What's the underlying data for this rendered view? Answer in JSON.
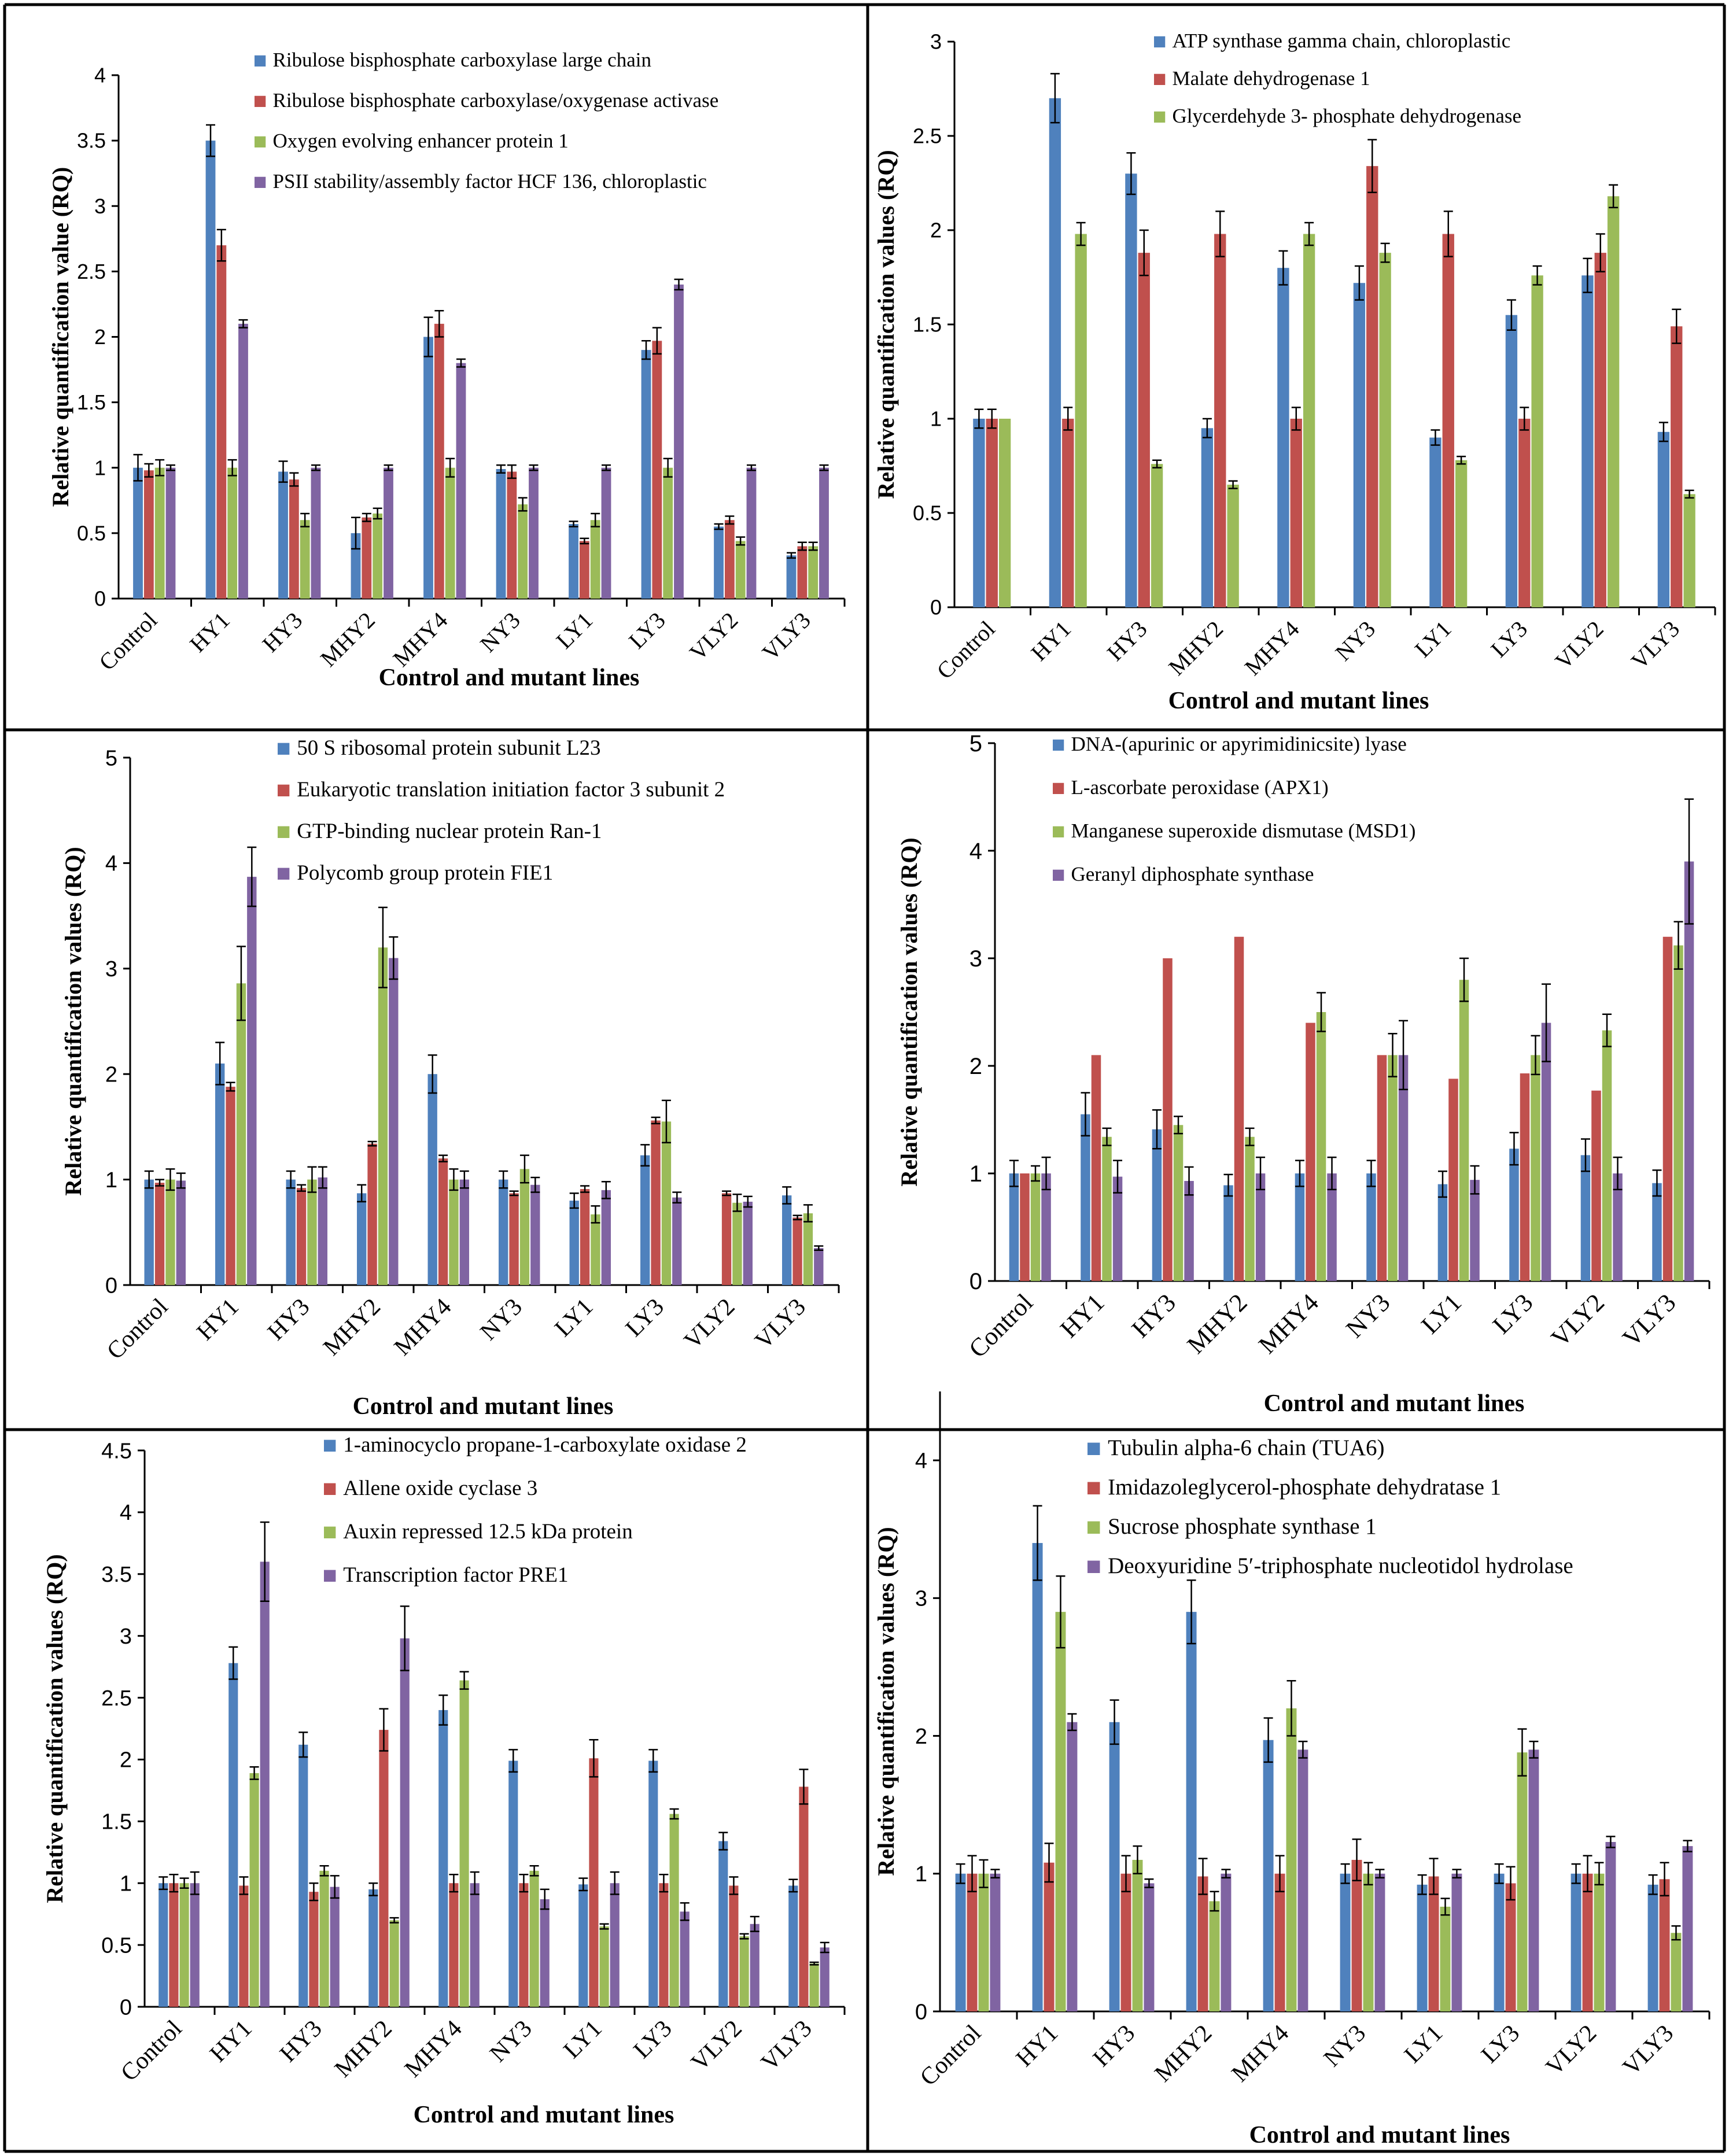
{
  "colors": {
    "series": [
      "#4F81BD",
      "#C0504D",
      "#9BBB59",
      "#8064A2"
    ],
    "axis": "#000000",
    "frame": "#000000"
  },
  "chart_data": [
    {
      "type": "bar",
      "title": "",
      "xlabel": "Control and mutant lines",
      "ylabel": "Relative quantification value (RQ)",
      "ylim": [
        0,
        4
      ],
      "yticks": [
        "0",
        "0.5",
        "1",
        "1.5",
        "2",
        "2.5",
        "3",
        "3.5",
        "4"
      ],
      "categories": [
        "Control",
        "HY1",
        "HY3",
        "MHY2",
        "MHY4",
        "NY3",
        "LY1",
        "LY3",
        "VLY2",
        "VLY3"
      ],
      "series": [
        {
          "name": "Ribulose bisphosphate carboxylase large chain",
          "values": [
            1.0,
            3.5,
            0.97,
            0.5,
            2.0,
            0.99,
            0.57,
            1.9,
            0.55,
            0.33
          ],
          "errors": [
            0.1,
            0.12,
            0.08,
            0.12,
            0.15,
            0.03,
            0.02,
            0.07,
            0.02,
            0.02
          ]
        },
        {
          "name": "Ribulose bisphosphate carboxylase/oxygenase activase",
          "values": [
            0.98,
            2.7,
            0.91,
            0.62,
            2.1,
            0.97,
            0.44,
            1.97,
            0.6,
            0.4
          ],
          "errors": [
            0.05,
            0.12,
            0.05,
            0.03,
            0.1,
            0.05,
            0.02,
            0.1,
            0.03,
            0.03
          ]
        },
        {
          "name": "Oxygen evolving enhancer protein 1",
          "values": [
            1.0,
            1.0,
            0.6,
            0.65,
            1.0,
            0.72,
            0.6,
            1.0,
            0.44,
            0.4
          ],
          "errors": [
            0.06,
            0.06,
            0.05,
            0.04,
            0.07,
            0.05,
            0.05,
            0.07,
            0.03,
            0.03
          ]
        },
        {
          "name": "PSII stability/assembly factor HCF 136, chloroplastic",
          "values": [
            1.0,
            2.1,
            1.0,
            1.0,
            1.8,
            1.0,
            1.0,
            2.4,
            1.0,
            1.0
          ],
          "errors": [
            0.02,
            0.03,
            0.02,
            0.02,
            0.03,
            0.02,
            0.02,
            0.04,
            0.02,
            0.02
          ]
        }
      ]
    },
    {
      "type": "bar",
      "title": "",
      "xlabel": "Control and mutant lines",
      "ylabel": "Relative quantification values (RQ)",
      "ylim": [
        0,
        3
      ],
      "yticks": [
        "0",
        "0.5",
        "1",
        "1.5",
        "2",
        "2.5",
        "3"
      ],
      "categories": [
        "Control",
        "HY1",
        "HY3",
        "MHY2",
        "MHY4",
        "NY3",
        "LY1",
        "LY3",
        "VLY2",
        "VLY3"
      ],
      "series": [
        {
          "name": "ATP synthase gamma chain, chloroplastic",
          "values": [
            1.0,
            2.7,
            2.3,
            0.95,
            1.8,
            1.72,
            0.9,
            1.55,
            1.76,
            0.93
          ],
          "errors": [
            0.05,
            0.13,
            0.11,
            0.05,
            0.09,
            0.09,
            0.04,
            0.08,
            0.09,
            0.05
          ]
        },
        {
          "name": "Malate dehydrogenase 1",
          "values": [
            1.0,
            1.0,
            1.88,
            1.98,
            1.0,
            2.34,
            1.98,
            1.0,
            1.88,
            1.49
          ],
          "errors": [
            0.05,
            0.06,
            0.12,
            0.12,
            0.06,
            0.14,
            0.12,
            0.06,
            0.1,
            0.09
          ]
        },
        {
          "name": "Glycerdehyde 3- phosphate dehydrogenase",
          "values": [
            1.0,
            1.98,
            0.76,
            0.65,
            1.98,
            1.88,
            0.78,
            1.76,
            2.18,
            0.6
          ],
          "errors": [
            0.0,
            0.06,
            0.02,
            0.02,
            0.06,
            0.05,
            0.02,
            0.05,
            0.06,
            0.02
          ]
        }
      ]
    },
    {
      "type": "bar",
      "title": "",
      "xlabel": "Control and mutant lines",
      "ylabel": "Relative quantification values (RQ)",
      "ylim": [
        0,
        5
      ],
      "yticks": [
        "0",
        "1",
        "2",
        "3",
        "4",
        "5"
      ],
      "categories": [
        "Control",
        "HY1",
        "HY3",
        "MHY2",
        "MHY4",
        "NY3",
        "LY1",
        "LY3",
        "VLY2",
        "VLY3"
      ],
      "series": [
        {
          "name": "50 S ribosomal protein subunit L23",
          "values": [
            1.0,
            2.1,
            1.0,
            0.87,
            2.0,
            1.0,
            0.8,
            1.23,
            0,
            0.85
          ],
          "errors": [
            0.08,
            0.2,
            0.08,
            0.08,
            0.18,
            0.08,
            0.07,
            0.1,
            0,
            0.08
          ]
        },
        {
          "name": "Eukaryotic translation initiation factor 3 subunit 2",
          "values": [
            0.97,
            1.88,
            0.92,
            1.34,
            1.2,
            0.87,
            0.91,
            1.56,
            0.87,
            0.64
          ],
          "errors": [
            0.03,
            0.04,
            0.03,
            0.02,
            0.03,
            0.02,
            0.03,
            0.03,
            0.02,
            0.02
          ]
        },
        {
          "name": "GTP-binding nuclear protein Ran-1",
          "values": [
            1.0,
            2.86,
            1.0,
            3.2,
            1.0,
            1.1,
            0.67,
            1.55,
            0.78,
            0.68
          ],
          "errors": [
            0.1,
            0.35,
            0.12,
            0.38,
            0.1,
            0.13,
            0.08,
            0.2,
            0.08,
            0.08
          ]
        },
        {
          "name": "Polycomb group protein FIE1",
          "values": [
            0.99,
            3.87,
            1.02,
            3.1,
            1.0,
            0.95,
            0.9,
            0.83,
            0.79,
            0.35
          ],
          "errors": [
            0.07,
            0.28,
            0.1,
            0.2,
            0.08,
            0.07,
            0.08,
            0.05,
            0.05,
            0.02
          ]
        }
      ]
    },
    {
      "type": "bar",
      "title": "",
      "xlabel": "Control and mutant lines",
      "ylabel": "Relative quantification values (RQ)",
      "ylim": [
        0,
        5
      ],
      "yticks": [
        "0",
        "1",
        "2",
        "3",
        "4",
        "5"
      ],
      "categories": [
        "Control",
        "HY1",
        "HY3",
        "MHY2",
        "MHY4",
        "NY3",
        "LY1",
        "LY3",
        "VLY2",
        "VLY3"
      ],
      "series": [
        {
          "name": "DNA-(apurinic or apyrimidinicsite) lyase",
          "values": [
            1.0,
            1.55,
            1.41,
            0.89,
            1.0,
            1.0,
            0.9,
            1.23,
            1.17,
            0.91
          ],
          "errors": [
            0.12,
            0.2,
            0.18,
            0.1,
            0.12,
            0.12,
            0.12,
            0.15,
            0.15,
            0.12
          ]
        },
        {
          "name": "L-ascorbate peroxidase (APX1)",
          "values": [
            1.0,
            2.1,
            3.0,
            3.2,
            2.4,
            2.1,
            1.88,
            1.93,
            1.77,
            3.2
          ]
        },
        {
          "name": "Manganese superoxide dismutase (MSD1)",
          "values": [
            1.0,
            1.34,
            1.45,
            1.34,
            2.5,
            2.1,
            2.8,
            2.1,
            2.33,
            3.12
          ],
          "errors": [
            0.07,
            0.08,
            0.08,
            0.08,
            0.18,
            0.2,
            0.2,
            0.18,
            0.15,
            0.22
          ]
        },
        {
          "name": "Geranyl diphosphate synthase",
          "values": [
            1.0,
            0.97,
            0.93,
            1.0,
            1.0,
            2.1,
            0.94,
            2.4,
            1.0,
            3.9
          ],
          "errors": [
            0.15,
            0.15,
            0.13,
            0.15,
            0.15,
            0.32,
            0.13,
            0.36,
            0.15,
            0.58
          ]
        }
      ]
    },
    {
      "type": "bar",
      "title": "",
      "xlabel": "Control and mutant lines",
      "ylabel": "Relative quantification values (RQ)",
      "ylim": [
        0,
        4.5
      ],
      "yticks": [
        "0",
        "0.5",
        "1",
        "1.5",
        "2",
        "2.5",
        "3",
        "3.5",
        "4",
        "4.5"
      ],
      "categories": [
        "Control",
        "HY1",
        "HY3",
        "MHY2",
        "MHY4",
        "NY3",
        "LY1",
        "LY3",
        "VLY2",
        "VLY3"
      ],
      "series": [
        {
          "name": "1-aminocyclo propane-1-carboxylate oxidase 2",
          "values": [
            1.0,
            2.78,
            2.12,
            0.95,
            2.4,
            1.99,
            0.99,
            1.99,
            1.34,
            0.98
          ],
          "errors": [
            0.05,
            0.13,
            0.1,
            0.05,
            0.12,
            0.09,
            0.05,
            0.09,
            0.07,
            0.05
          ]
        },
        {
          "name": "Allene oxide cyclase 3",
          "values": [
            1.0,
            0.98,
            0.93,
            2.24,
            1.0,
            1.0,
            2.01,
            1.0,
            0.98,
            1.78
          ],
          "errors": [
            0.07,
            0.07,
            0.07,
            0.17,
            0.07,
            0.07,
            0.15,
            0.07,
            0.07,
            0.14
          ]
        },
        {
          "name": "Auxin repressed 12.5 kDa protein",
          "values": [
            1.0,
            1.89,
            1.1,
            0.7,
            2.64,
            1.1,
            0.65,
            1.56,
            0.57,
            0.35
          ],
          "errors": [
            0.04,
            0.05,
            0.04,
            0.02,
            0.07,
            0.04,
            0.02,
            0.04,
            0.02,
            0.01
          ]
        },
        {
          "name": "Transcription factor PRE1",
          "values": [
            1.0,
            3.6,
            0.97,
            2.98,
            1.0,
            0.87,
            1.0,
            0.77,
            0.67,
            0.48
          ],
          "errors": [
            0.09,
            0.32,
            0.09,
            0.26,
            0.09,
            0.08,
            0.09,
            0.07,
            0.06,
            0.04
          ]
        }
      ]
    },
    {
      "type": "bar",
      "title": "",
      "xlabel": "Control and mutant lines",
      "ylabel": "Relative quantification values (RQ)",
      "ylim": [
        0,
        4.5
      ],
      "yticks": [
        "0",
        "1",
        "2",
        "3",
        "4"
      ],
      "categories": [
        "Control",
        "HY1",
        "HY3",
        "MHY2",
        "MHY4",
        "NY3",
        "LY1",
        "LY3",
        "VLY2",
        "VLY3"
      ],
      "series": [
        {
          "name": "Tubulin alpha-6 chain (TUA6)",
          "values": [
            1.0,
            3.4,
            2.1,
            2.9,
            1.97,
            1.0,
            0.92,
            1.0,
            1.0,
            0.92
          ],
          "errors": [
            0.07,
            0.27,
            0.16,
            0.23,
            0.16,
            0.07,
            0.07,
            0.07,
            0.07,
            0.07
          ]
        },
        {
          "name": "Imidazoleglycerol-phosphate dehydratase 1",
          "values": [
            1.0,
            1.08,
            1.0,
            0.98,
            1.0,
            1.1,
            0.98,
            0.93,
            1.0,
            0.96
          ],
          "errors": [
            0.13,
            0.14,
            0.13,
            0.13,
            0.13,
            0.15,
            0.13,
            0.12,
            0.13,
            0.12
          ]
        },
        {
          "name": "Sucrose phosphate synthase 1",
          "values": [
            1.0,
            2.9,
            1.1,
            0.8,
            2.2,
            1.0,
            0.76,
            1.88,
            1.0,
            0.57
          ],
          "errors": [
            0.1,
            0.26,
            0.1,
            0.07,
            0.2,
            0.08,
            0.06,
            0.17,
            0.08,
            0.05
          ]
        },
        {
          "name": "Deoxyuridine 5′-triphosphate nucleotidol hydrolase",
          "values": [
            1.0,
            2.1,
            0.93,
            1.0,
            1.9,
            1.0,
            1.0,
            1.9,
            1.23,
            1.2
          ],
          "errors": [
            0.03,
            0.06,
            0.03,
            0.03,
            0.06,
            0.03,
            0.03,
            0.06,
            0.04,
            0.04
          ]
        }
      ]
    }
  ]
}
